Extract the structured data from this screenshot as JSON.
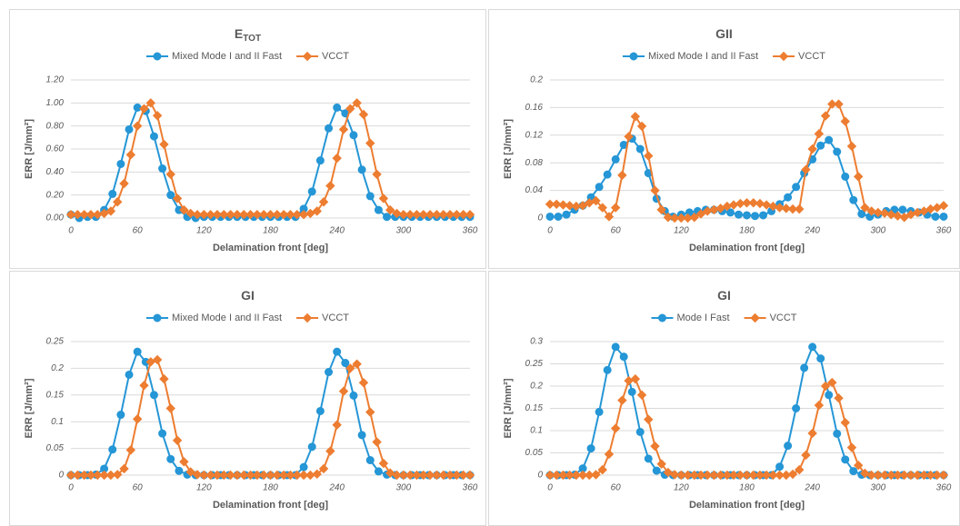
{
  "chart_data": [
    {
      "type": "line",
      "title": "E",
      "title_subscript": "TOT",
      "x_label": "Delamination front [deg]",
      "y_label": "ERR [J/mm²]",
      "xlim": [
        0,
        360
      ],
      "xticks": [
        0,
        60,
        120,
        180,
        240,
        300,
        360
      ],
      "ylim": [
        0,
        1.2
      ],
      "yticks": [
        {
          "value": 0,
          "label": "0.00"
        },
        {
          "value": 0.2,
          "label": "0.20"
        },
        {
          "value": 0.4,
          "label": "0.40"
        },
        {
          "value": 0.6,
          "label": "0.60"
        },
        {
          "value": 0.8,
          "label": "0.80"
        },
        {
          "value": 1.0,
          "label": "1.00"
        },
        {
          "value": 1.2,
          "label": "1.20"
        }
      ],
      "grid": true,
      "legend": "top",
      "series": [
        {
          "name": "Mixed Mode I and II Fast",
          "color": "#2596d6",
          "marker": "circle",
          "x": [
            0,
            7.5,
            15,
            22.5,
            30,
            37.5,
            45,
            52.5,
            60,
            67.5,
            75,
            82.5,
            90,
            97.5,
            105,
            112.5,
            120,
            127.5,
            135,
            142.5,
            150,
            157.5,
            165,
            172.5,
            180,
            187.5,
            195,
            202.5,
            210,
            217.5,
            225,
            232.5,
            240,
            247.5,
            255,
            262.5,
            270,
            277.5,
            285,
            292.5,
            300,
            307.5,
            315,
            322.5,
            330,
            337.5,
            345,
            352.5,
            360
          ],
          "values": [
            0.03,
            0,
            0.01,
            0.01,
            0.07,
            0.21,
            0.47,
            0.77,
            0.96,
            0.93,
            0.71,
            0.43,
            0.2,
            0.07,
            0.01,
            0,
            0.01,
            0.01,
            0.01,
            0.01,
            0.01,
            0.01,
            0.01,
            0.01,
            0.01,
            0.01,
            0.01,
            0.01,
            0.08,
            0.23,
            0.5,
            0.78,
            0.96,
            0.91,
            0.72,
            0.42,
            0.19,
            0.07,
            0.01,
            0.01,
            0.01,
            0.01,
            0.01,
            0.01,
            0.01,
            0.01,
            0.01,
            0.01,
            0.01
          ]
        },
        {
          "name": "VCCT",
          "color": "#ed7d31",
          "marker": "diamond",
          "x": [
            0,
            6,
            12,
            18,
            24,
            30,
            36,
            42,
            48,
            54,
            60,
            66,
            72,
            78,
            84,
            90,
            96,
            102,
            108,
            114,
            120,
            126,
            132,
            138,
            144,
            150,
            156,
            162,
            168,
            174,
            180,
            186,
            192,
            198,
            204,
            210,
            216,
            222,
            228,
            234,
            240,
            246,
            252,
            258,
            264,
            270,
            276,
            282,
            288,
            294,
            300,
            306,
            312,
            318,
            324,
            330,
            336,
            342,
            348,
            354,
            360
          ],
          "values": [
            0.03,
            0.03,
            0.03,
            0.03,
            0.03,
            0.04,
            0.06,
            0.14,
            0.3,
            0.55,
            0.8,
            0.95,
            1.0,
            0.89,
            0.64,
            0.38,
            0.17,
            0.07,
            0.04,
            0.03,
            0.03,
            0.03,
            0.03,
            0.03,
            0.03,
            0.03,
            0.03,
            0.03,
            0.03,
            0.03,
            0.03,
            0.03,
            0.03,
            0.03,
            0.03,
            0.03,
            0.04,
            0.06,
            0.14,
            0.28,
            0.52,
            0.77,
            0.95,
            1.0,
            0.9,
            0.65,
            0.38,
            0.17,
            0.07,
            0.04,
            0.03,
            0.03,
            0.03,
            0.03,
            0.03,
            0.03,
            0.03,
            0.03,
            0.03,
            0.03,
            0.03
          ]
        }
      ]
    },
    {
      "type": "line",
      "title": "GII",
      "x_label": "Delamination front [deg]",
      "y_label": "ERR [J/mm²]",
      "xlim": [
        0,
        360
      ],
      "xticks": [
        0,
        60,
        120,
        180,
        240,
        300,
        360
      ],
      "ylim": [
        0,
        0.2
      ],
      "yticks": [
        0,
        0.04,
        0.08,
        0.12,
        0.16,
        0.2
      ],
      "grid": true,
      "legend": "top",
      "series": [
        {
          "name": "Mixed Mode I and II Fast",
          "color": "#2596d6",
          "marker": "circle",
          "x": [
            0,
            7.5,
            15,
            22.5,
            30,
            37.5,
            45,
            52.5,
            60,
            67.5,
            75,
            82.5,
            90,
            97.5,
            105,
            112.5,
            120,
            127.5,
            135,
            142.5,
            150,
            157.5,
            165,
            172.5,
            180,
            187.5,
            195,
            202.5,
            210,
            217.5,
            225,
            232.5,
            240,
            247.5,
            255,
            262.5,
            270,
            277.5,
            285,
            292.5,
            300,
            307.5,
            315,
            322.5,
            330,
            337.5,
            345,
            352.5,
            360
          ],
          "values": [
            0.002,
            0.002,
            0.005,
            0.012,
            0.018,
            0.03,
            0.045,
            0.063,
            0.085,
            0.106,
            0.115,
            0.1,
            0.065,
            0.028,
            0.01,
            0.002,
            0.005,
            0.008,
            0.01,
            0.012,
            0.012,
            0.01,
            0.008,
            0.005,
            0.004,
            0.003,
            0.004,
            0.01,
            0.02,
            0.03,
            0.045,
            0.065,
            0.085,
            0.105,
            0.113,
            0.096,
            0.06,
            0.026,
            0.006,
            0.002,
            0.005,
            0.01,
            0.012,
            0.012,
            0.01,
            0.008,
            0.005,
            0.002,
            0.002
          ]
        },
        {
          "name": "VCCT",
          "color": "#ed7d31",
          "marker": "diamond",
          "x": [
            0,
            6,
            12,
            18,
            24,
            30,
            36,
            42,
            48,
            54,
            60,
            66,
            72,
            78,
            84,
            90,
            96,
            102,
            108,
            114,
            120,
            126,
            132,
            138,
            144,
            150,
            156,
            162,
            168,
            174,
            180,
            186,
            192,
            198,
            204,
            210,
            216,
            222,
            228,
            234,
            240,
            246,
            252,
            258,
            264,
            270,
            276,
            282,
            288,
            294,
            300,
            306,
            312,
            318,
            324,
            330,
            336,
            342,
            348,
            354,
            360
          ],
          "values": [
            0.02,
            0.02,
            0.019,
            0.018,
            0.017,
            0.018,
            0.022,
            0.025,
            0.015,
            0.002,
            0.015,
            0.062,
            0.118,
            0.147,
            0.133,
            0.09,
            0.04,
            0.012,
            0.001,
            0,
            0,
            0,
            0.001,
            0.006,
            0.01,
            0.012,
            0.014,
            0.017,
            0.019,
            0.021,
            0.022,
            0.022,
            0.021,
            0.019,
            0.017,
            0.015,
            0.014,
            0.013,
            0.013,
            0.07,
            0.1,
            0.122,
            0.148,
            0.165,
            0.165,
            0.14,
            0.104,
            0.06,
            0.015,
            0.01,
            0.008,
            0.007,
            0.005,
            0.003,
            0.001,
            0.005,
            0.008,
            0.01,
            0.013,
            0.015,
            0.018
          ]
        }
      ]
    },
    {
      "type": "line",
      "title": "GI",
      "x_label": "Delamination front [deg]",
      "y_label": "ERR [J/mm²]",
      "xlim": [
        0,
        360
      ],
      "xticks": [
        0,
        60,
        120,
        180,
        240,
        300,
        360
      ],
      "ylim": [
        0,
        0.25
      ],
      "yticks": [
        0,
        0.05,
        0.1,
        0.15,
        0.2,
        0.25
      ],
      "grid": true,
      "legend": "top",
      "series": [
        {
          "name": "Mixed Mode I and II Fast",
          "color": "#2596d6",
          "marker": "circle",
          "x": [
            0,
            7.5,
            15,
            22.5,
            30,
            37.5,
            45,
            52.5,
            60,
            67.5,
            75,
            82.5,
            90,
            97.5,
            105,
            112.5,
            120,
            127.5,
            135,
            142.5,
            150,
            157.5,
            165,
            172.5,
            180,
            187.5,
            195,
            202.5,
            210,
            217.5,
            225,
            232.5,
            240,
            247.5,
            255,
            262.5,
            270,
            277.5,
            285,
            292.5,
            300,
            307.5,
            315,
            322.5,
            330,
            337.5,
            345,
            352.5,
            360
          ],
          "values": [
            0,
            0,
            0,
            0.001,
            0.012,
            0.048,
            0.113,
            0.188,
            0.231,
            0.212,
            0.15,
            0.078,
            0.03,
            0.008,
            0.001,
            0,
            0,
            0,
            0,
            0,
            0,
            0,
            0,
            0,
            0,
            0,
            0,
            0,
            0.015,
            0.053,
            0.12,
            0.193,
            0.231,
            0.21,
            0.149,
            0.075,
            0.028,
            0.007,
            0.001,
            0,
            0,
            0,
            0,
            0,
            0,
            0,
            0,
            0,
            0
          ]
        },
        {
          "name": "VCCT",
          "color": "#ed7d31",
          "marker": "diamond",
          "x": [
            0,
            6,
            12,
            18,
            24,
            30,
            36,
            42,
            48,
            54,
            60,
            66,
            72,
            78,
            84,
            90,
            96,
            102,
            108,
            114,
            120,
            126,
            132,
            138,
            144,
            150,
            156,
            162,
            168,
            174,
            180,
            186,
            192,
            198,
            204,
            210,
            216,
            222,
            228,
            234,
            240,
            246,
            252,
            258,
            264,
            270,
            276,
            282,
            288,
            294,
            300,
            306,
            312,
            318,
            324,
            330,
            336,
            342,
            348,
            354,
            360
          ],
          "values": [
            0,
            0,
            0,
            0,
            0,
            0,
            0,
            0.001,
            0.012,
            0.047,
            0.105,
            0.168,
            0.212,
            0.216,
            0.18,
            0.125,
            0.065,
            0.025,
            0.006,
            0.001,
            0,
            0,
            0,
            0,
            0,
            0,
            0,
            0,
            0,
            0,
            0,
            0,
            0,
            0,
            0,
            0,
            0,
            0.002,
            0.012,
            0.045,
            0.094,
            0.157,
            0.2,
            0.208,
            0.173,
            0.118,
            0.062,
            0.022,
            0.004,
            0,
            0,
            0,
            0,
            0,
            0,
            0,
            0,
            0,
            0,
            0,
            0
          ]
        }
      ]
    },
    {
      "type": "line",
      "title": "GI",
      "x_label": "Delamination front [deg]",
      "y_label": "ERR [J/mm²]",
      "xlim": [
        0,
        360
      ],
      "xticks": [
        0,
        60,
        120,
        180,
        240,
        300,
        360
      ],
      "ylim": [
        0,
        0.3
      ],
      "yticks": [
        0,
        0.05,
        0.1,
        0.15,
        0.2,
        0.25,
        0.3
      ],
      "grid": true,
      "legend": "top",
      "series": [
        {
          "name": "Mode I Fast",
          "color": "#2596d6",
          "marker": "circle",
          "x": [
            0,
            7.5,
            15,
            22.5,
            30,
            37.5,
            45,
            52.5,
            60,
            67.5,
            75,
            82.5,
            90,
            97.5,
            105,
            112.5,
            120,
            127.5,
            135,
            142.5,
            150,
            157.5,
            165,
            172.5,
            180,
            187.5,
            195,
            202.5,
            210,
            217.5,
            225,
            232.5,
            240,
            247.5,
            255,
            262.5,
            270,
            277.5,
            285,
            292.5,
            300,
            307.5,
            315,
            322.5,
            330,
            337.5,
            345,
            352.5,
            360
          ],
          "values": [
            0,
            0,
            0,
            0.001,
            0.015,
            0.06,
            0.142,
            0.236,
            0.288,
            0.266,
            0.187,
            0.097,
            0.037,
            0.01,
            0.001,
            0,
            0,
            0,
            0,
            0,
            0,
            0,
            0,
            0,
            0,
            0,
            0,
            0,
            0.019,
            0.066,
            0.15,
            0.241,
            0.288,
            0.262,
            0.18,
            0.093,
            0.035,
            0.009,
            0.001,
            0,
            0,
            0,
            0,
            0,
            0,
            0,
            0,
            0,
            0
          ]
        },
        {
          "name": "VCCT",
          "color": "#ed7d31",
          "marker": "diamond",
          "x": [
            0,
            6,
            12,
            18,
            24,
            30,
            36,
            42,
            48,
            54,
            60,
            66,
            72,
            78,
            84,
            90,
            96,
            102,
            108,
            114,
            120,
            126,
            132,
            138,
            144,
            150,
            156,
            162,
            168,
            174,
            180,
            186,
            192,
            198,
            204,
            210,
            216,
            222,
            228,
            234,
            240,
            246,
            252,
            258,
            264,
            270,
            276,
            282,
            288,
            294,
            300,
            306,
            312,
            318,
            324,
            330,
            336,
            342,
            348,
            354,
            360
          ],
          "values": [
            0,
            0,
            0,
            0,
            0,
            0,
            0,
            0.001,
            0.012,
            0.047,
            0.105,
            0.168,
            0.212,
            0.216,
            0.18,
            0.125,
            0.065,
            0.025,
            0.006,
            0.001,
            0,
            0,
            0,
            0,
            0,
            0,
            0,
            0,
            0,
            0,
            0,
            0,
            0,
            0,
            0,
            0,
            0,
            0.002,
            0.012,
            0.045,
            0.094,
            0.157,
            0.2,
            0.208,
            0.173,
            0.118,
            0.062,
            0.022,
            0.004,
            0,
            0,
            0,
            0,
            0,
            0,
            0,
            0,
            0,
            0,
            0,
            0
          ]
        }
      ]
    }
  ]
}
